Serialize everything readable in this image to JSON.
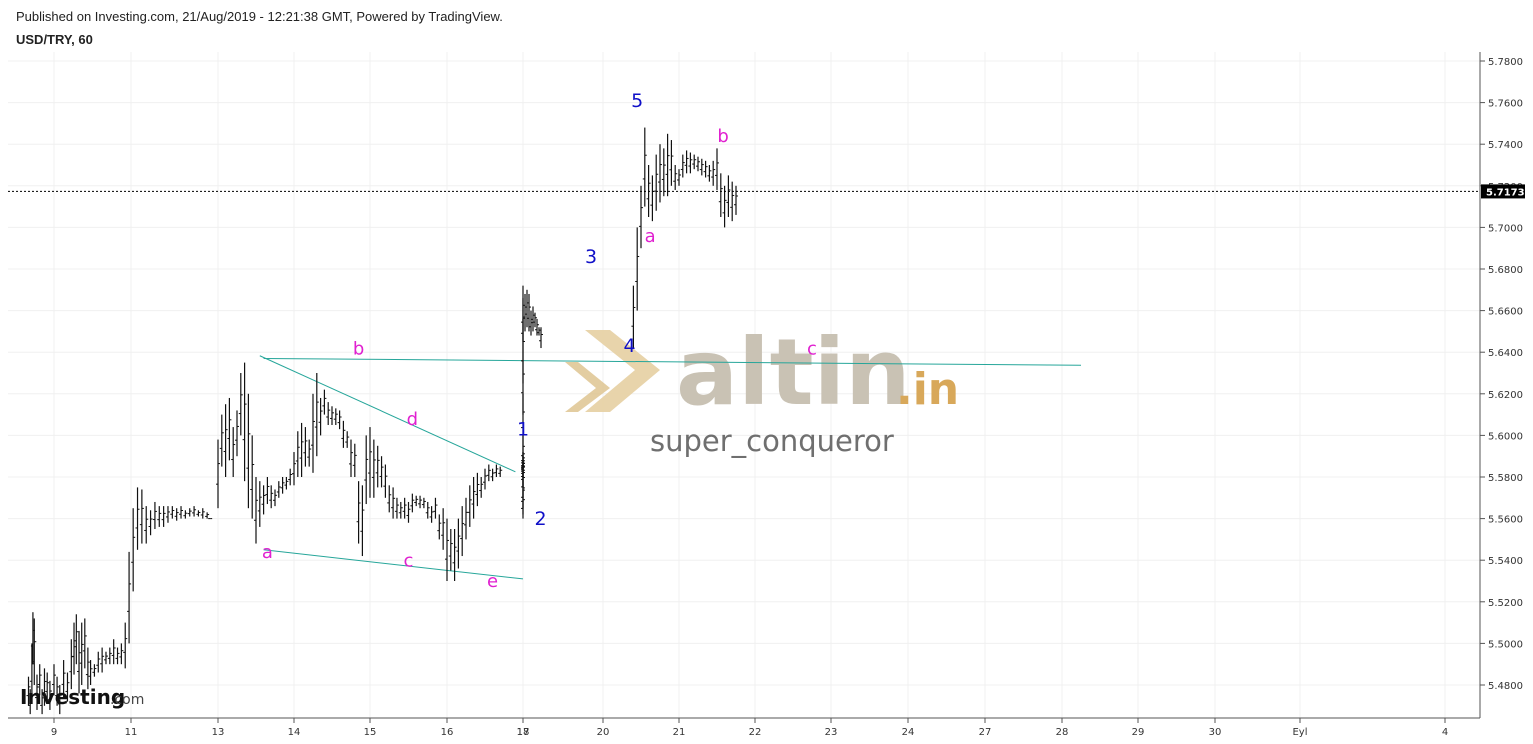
{
  "header": {
    "published": "Published on Investing.com, 21/Aug/2019 - 12:21:38 GMT, Powered by TradingView.",
    "symbol": "USD/TRY, 60"
  },
  "watermark": {
    "main": "altin",
    "suffix": ".in",
    "user": "super_conqueror"
  },
  "logo": {
    "brand": "Investing",
    "suffix": ".com"
  },
  "colors": {
    "bars": "#111111",
    "trendline": "#26a69a",
    "wave_blue": "#1010c8",
    "wave_pink": "#e020d0",
    "price_tag": "#000000"
  },
  "chart_data": {
    "type": "ohlc",
    "interval_label": "60",
    "y_ticks": [
      "5.7800",
      "5.7600",
      "5.7400",
      "5.7200",
      "5.7000",
      "5.6800",
      "5.6600",
      "5.6400",
      "5.6200",
      "5.6000",
      "5.5800",
      "5.5600",
      "5.5400",
      "5.5200",
      "5.5000",
      "5.4800"
    ],
    "y_range": [
      5.464,
      5.7835
    ],
    "x_ticks": [
      "9",
      "11",
      "13",
      "14",
      "15",
      "16",
      "17",
      "18",
      "20",
      "21",
      "22",
      "23",
      "24",
      "27",
      "28",
      "29",
      "30",
      "Eyl",
      "4"
    ],
    "last_price": "5.7173",
    "waves_blue": [
      {
        "label": "1",
        "x": 18.0,
        "y": 5.6
      },
      {
        "label": "2",
        "x": 18.44,
        "y": 5.557
      },
      {
        "label": "3",
        "x": 19.7,
        "y": 5.683
      },
      {
        "label": "4",
        "x": 20.35,
        "y": 5.64
      },
      {
        "label": "5",
        "x": 20.45,
        "y": 5.758
      }
    ],
    "waves_pink": [
      {
        "label": "a",
        "x": 13.65,
        "y": 5.541
      },
      {
        "label": "b",
        "x": 14.85,
        "y": 5.639
      },
      {
        "label": "c",
        "x": 15.5,
        "y": 5.537
      },
      {
        "label": "d",
        "x": 15.55,
        "y": 5.605
      },
      {
        "label": "e",
        "x": 16.6,
        "y": 5.527
      },
      {
        "label": "a",
        "x": 20.62,
        "y": 5.693
      },
      {
        "label": "b",
        "x": 21.58,
        "y": 5.741
      },
      {
        "label": "c",
        "x": 22.75,
        "y": 5.639
      }
    ],
    "trendlines": [
      {
        "x1": 13.55,
        "y1": 5.6383,
        "x2": 16.9,
        "y2": 5.5825
      },
      {
        "x1": 13.6,
        "y1": 5.545,
        "x2": 17.25,
        "y2": 5.531
      },
      {
        "x1": 13.6,
        "y1": 5.637,
        "x2": 28.25,
        "y2": 5.6337
      }
    ],
    "bars": [
      [
        8.25,
        5.484,
        5.47
      ],
      [
        8.3,
        5.478,
        5.466
      ],
      [
        8.35,
        5.5,
        5.472
      ],
      [
        8.38,
        5.515,
        5.49
      ],
      [
        8.42,
        5.512,
        5.48
      ],
      [
        8.5,
        5.485,
        5.468
      ],
      [
        8.58,
        5.49,
        5.475
      ],
      [
        8.65,
        5.478,
        5.466
      ],
      [
        8.72,
        5.488,
        5.47
      ],
      [
        8.8,
        5.486,
        5.472
      ],
      [
        8.88,
        5.482,
        5.468
      ],
      [
        9.0,
        5.49,
        5.475
      ],
      [
        9.08,
        5.484,
        5.47
      ],
      [
        9.15,
        5.48,
        5.466
      ],
      [
        9.25,
        5.492,
        5.474
      ],
      [
        9.35,
        5.486,
        5.472
      ],
      [
        9.45,
        5.502,
        5.478
      ],
      [
        9.52,
        5.51,
        5.485
      ],
      [
        9.58,
        5.514,
        5.49
      ],
      [
        9.65,
        5.506,
        5.476
      ],
      [
        9.72,
        5.51,
        5.48
      ],
      [
        9.8,
        5.512,
        5.488
      ],
      [
        9.88,
        5.498,
        5.478
      ],
      [
        9.95,
        5.492,
        5.48
      ],
      [
        10.05,
        5.49,
        5.484
      ],
      [
        10.15,
        5.496,
        5.486
      ],
      [
        10.25,
        5.498,
        5.486
      ],
      [
        10.35,
        5.496,
        5.49
      ],
      [
        10.45,
        5.498,
        5.49
      ],
      [
        10.55,
        5.502,
        5.49
      ],
      [
        10.65,
        5.498,
        5.49
      ],
      [
        10.75,
        5.5,
        5.49
      ],
      [
        10.85,
        5.51,
        5.488
      ],
      [
        10.95,
        5.544,
        5.5
      ],
      [
        11.05,
        5.565,
        5.525
      ],
      [
        11.15,
        5.575,
        5.545
      ],
      [
        11.25,
        5.574,
        5.548
      ],
      [
        11.35,
        5.566,
        5.548
      ],
      [
        11.45,
        5.564,
        5.552
      ],
      [
        11.55,
        5.568,
        5.555
      ],
      [
        11.65,
        5.566,
        5.556
      ],
      [
        11.75,
        5.566,
        5.556
      ],
      [
        11.85,
        5.566,
        5.558
      ],
      [
        11.95,
        5.566,
        5.56
      ],
      [
        12.05,
        5.565,
        5.559
      ],
      [
        12.15,
        5.566,
        5.56
      ],
      [
        12.25,
        5.564,
        5.56
      ],
      [
        12.35,
        5.565,
        5.561
      ],
      [
        12.45,
        5.566,
        5.561
      ],
      [
        12.55,
        5.564,
        5.561
      ],
      [
        12.65,
        5.565,
        5.56
      ],
      [
        12.75,
        5.563,
        5.56
      ],
      [
        12.82,
        5.56,
        5.56
      ],
      [
        13.0,
        5.598,
        5.565
      ],
      [
        13.05,
        5.61,
        5.585
      ],
      [
        13.1,
        5.615,
        5.58
      ],
      [
        13.15,
        5.618,
        5.588
      ],
      [
        13.2,
        5.604,
        5.58
      ],
      [
        13.25,
        5.612,
        5.59
      ],
      [
        13.3,
        5.63,
        5.6
      ],
      [
        13.35,
        5.635,
        5.578
      ],
      [
        13.4,
        5.62,
        5.565
      ],
      [
        13.45,
        5.6,
        5.56
      ],
      [
        13.5,
        5.58,
        5.548
      ],
      [
        13.55,
        5.578,
        5.556
      ],
      [
        13.6,
        5.576,
        5.562
      ],
      [
        13.65,
        5.58,
        5.567
      ],
      [
        13.7,
        5.576,
        5.565
      ],
      [
        13.75,
        5.574,
        5.566
      ],
      [
        13.8,
        5.578,
        5.57
      ],
      [
        13.85,
        5.58,
        5.572
      ],
      [
        13.9,
        5.58,
        5.574
      ],
      [
        13.95,
        5.584,
        5.576
      ],
      [
        14.0,
        5.592,
        5.576
      ],
      [
        14.05,
        5.602,
        5.58
      ],
      [
        14.1,
        5.606,
        5.58
      ],
      [
        14.15,
        5.604,
        5.585
      ],
      [
        14.2,
        5.598,
        5.585
      ],
      [
        14.25,
        5.62,
        5.582
      ],
      [
        14.3,
        5.63,
        5.59
      ],
      [
        14.35,
        5.618,
        5.6
      ],
      [
        14.4,
        5.622,
        5.61
      ],
      [
        14.45,
        5.616,
        5.605
      ],
      [
        14.5,
        5.614,
        5.605
      ],
      [
        14.55,
        5.613,
        5.605
      ],
      [
        14.6,
        5.612,
        5.603
      ],
      [
        14.65,
        5.607,
        5.594
      ],
      [
        14.7,
        5.602,
        5.594
      ],
      [
        14.75,
        5.598,
        5.58
      ],
      [
        14.8,
        5.596,
        5.58
      ],
      [
        14.85,
        5.578,
        5.548
      ],
      [
        14.9,
        5.576,
        5.542
      ],
      [
        14.95,
        5.6,
        5.567
      ],
      [
        15.0,
        5.604,
        5.57
      ],
      [
        15.05,
        5.598,
        5.57
      ],
      [
        15.1,
        5.595,
        5.575
      ],
      [
        15.15,
        5.59,
        5.575
      ],
      [
        15.2,
        5.586,
        5.57
      ],
      [
        15.25,
        5.576,
        5.563
      ],
      [
        15.3,
        5.575,
        5.56
      ],
      [
        15.35,
        5.57,
        5.56
      ],
      [
        15.4,
        5.568,
        5.56
      ],
      [
        15.45,
        5.57,
        5.56
      ],
      [
        15.5,
        5.568,
        5.558
      ],
      [
        15.55,
        5.572,
        5.563
      ],
      [
        15.6,
        5.571,
        5.566
      ],
      [
        15.65,
        5.571,
        5.565
      ],
      [
        15.7,
        5.57,
        5.565
      ],
      [
        15.75,
        5.568,
        5.56
      ],
      [
        15.8,
        5.566,
        5.558
      ],
      [
        15.85,
        5.57,
        5.56
      ],
      [
        15.9,
        5.562,
        5.55
      ],
      [
        15.95,
        5.565,
        5.545
      ],
      [
        16.0,
        5.56,
        5.53
      ],
      [
        16.05,
        5.555,
        5.535
      ],
      [
        16.1,
        5.555,
        5.53
      ],
      [
        16.15,
        5.56,
        5.536
      ],
      [
        16.2,
        5.566,
        5.542
      ],
      [
        16.25,
        5.57,
        5.55
      ],
      [
        16.3,
        5.576,
        5.556
      ],
      [
        16.35,
        5.58,
        5.56
      ],
      [
        16.4,
        5.582,
        5.566
      ],
      [
        16.45,
        5.58,
        5.57
      ],
      [
        16.5,
        5.584,
        5.574
      ],
      [
        16.55,
        5.586,
        5.578
      ],
      [
        16.6,
        5.584,
        5.578
      ],
      [
        16.65,
        5.586,
        5.58
      ],
      [
        16.7,
        5.585,
        5.58
      ],
      [
        17.0,
        5.59,
        5.58
      ],
      [
        17.05,
        5.595,
        5.584
      ],
      [
        17.1,
        5.592,
        5.584
      ],
      [
        17.15,
        5.588,
        5.584
      ],
      [
        17.2,
        5.588,
        5.584
      ],
      [
        17.25,
        5.586,
        5.584
      ],
      [
        17.3,
        5.588,
        5.58
      ],
      [
        17.35,
        5.585,
        5.58
      ],
      [
        17.4,
        5.586,
        5.575
      ],
      [
        17.45,
        5.58,
        5.562
      ],
      [
        17.5,
        5.574,
        5.56
      ],
      [
        17.55,
        5.58,
        5.565
      ],
      [
        17.6,
        5.585,
        5.57
      ],
      [
        17.65,
        5.59,
        5.575
      ],
      [
        17.7,
        5.592,
        5.58
      ],
      [
        17.75,
        5.6,
        5.585
      ],
      [
        17.8,
        5.62,
        5.595
      ],
      [
        17.85,
        5.64,
        5.61
      ],
      [
        17.9,
        5.656,
        5.625
      ],
      [
        17.95,
        5.666,
        5.64
      ],
      [
        18.0,
        5.672,
        5.645
      ],
      [
        18.05,
        5.668,
        5.65
      ],
      [
        18.1,
        5.67,
        5.652
      ],
      [
        18.15,
        5.668,
        5.65
      ],
      [
        18.2,
        5.66,
        5.648
      ],
      [
        18.25,
        5.662,
        5.65
      ],
      [
        18.3,
        5.659,
        5.652
      ],
      [
        18.35,
        5.656,
        5.648
      ],
      [
        18.4,
        5.652,
        5.648
      ],
      [
        18.45,
        5.652,
        5.642
      ]
    ],
    "bars_late": [
      [
        20.4,
        5.672,
        5.642
      ],
      [
        20.45,
        5.7,
        5.66
      ],
      [
        20.5,
        5.72,
        5.69
      ],
      [
        20.55,
        5.748,
        5.71
      ],
      [
        20.6,
        5.73,
        5.705
      ],
      [
        20.65,
        5.725,
        5.703
      ],
      [
        20.7,
        5.735,
        5.708
      ],
      [
        20.75,
        5.74,
        5.712
      ],
      [
        20.8,
        5.738,
        5.715
      ],
      [
        20.85,
        5.745,
        5.715
      ],
      [
        20.9,
        5.742,
        5.72
      ],
      [
        20.95,
        5.73,
        5.718
      ],
      [
        21.0,
        5.728,
        5.72
      ],
      [
        21.05,
        5.735,
        5.724
      ],
      [
        21.1,
        5.737,
        5.726
      ],
      [
        21.15,
        5.736,
        5.726
      ],
      [
        21.2,
        5.735,
        5.728
      ],
      [
        21.25,
        5.734,
        5.727
      ],
      [
        21.3,
        5.733,
        5.725
      ],
      [
        21.35,
        5.732,
        5.724
      ],
      [
        21.4,
        5.73,
        5.722
      ],
      [
        21.45,
        5.732,
        5.72
      ],
      [
        21.5,
        5.738,
        5.718
      ],
      [
        21.55,
        5.726,
        5.705
      ],
      [
        21.6,
        5.72,
        5.7
      ],
      [
        21.65,
        5.725,
        5.705
      ],
      [
        21.7,
        5.722,
        5.703
      ],
      [
        21.75,
        5.72,
        5.706
      ]
    ]
  }
}
